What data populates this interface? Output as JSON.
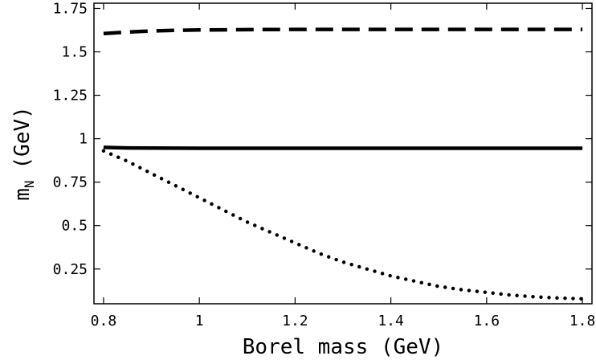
{
  "chart_data": {
    "type": "line",
    "xlabel": "Borel mass (GeV)",
    "ylabel": "m",
    "ylabel_sub": "N",
    "ylabel_unit": "(GeV)",
    "xlim": [
      0.78,
      1.82
    ],
    "ylim": [
      0.05,
      1.78
    ],
    "x_ticks": [
      0.8,
      1.0,
      1.2,
      1.4,
      1.6,
      1.8
    ],
    "x_tick_labels": [
      "0.8",
      "1",
      "1.2",
      "1.4",
      "1.6",
      "1.8"
    ],
    "y_ticks": [
      0.25,
      0.5,
      0.75,
      1.0,
      1.25,
      1.5,
      1.75
    ],
    "y_tick_labels": [
      "0.25",
      "0.5",
      "0.75",
      "1",
      "1.25",
      "1.5",
      "1.75"
    ],
    "grid": false,
    "legend": "none",
    "series": [
      {
        "style": "dashed",
        "x": [
          0.8,
          0.85,
          0.9,
          0.95,
          1.0,
          1.1,
          1.2,
          1.3,
          1.4,
          1.5,
          1.6,
          1.7,
          1.8
        ],
        "y": [
          1.605,
          1.614,
          1.62,
          1.624,
          1.626,
          1.628,
          1.629,
          1.629,
          1.629,
          1.629,
          1.629,
          1.629,
          1.629
        ]
      },
      {
        "style": "solid",
        "x": [
          0.8,
          0.85,
          0.9,
          1.0,
          1.2,
          1.4,
          1.6,
          1.8
        ],
        "y": [
          0.95,
          0.947,
          0.946,
          0.945,
          0.945,
          0.945,
          0.945,
          0.945
        ]
      },
      {
        "style": "dotted",
        "x": [
          0.8,
          0.85,
          0.9,
          0.95,
          1.0,
          1.05,
          1.1,
          1.15,
          1.2,
          1.25,
          1.3,
          1.35,
          1.4,
          1.45,
          1.5,
          1.55,
          1.6,
          1.65,
          1.7,
          1.75,
          1.8
        ],
        "y": [
          0.93,
          0.87,
          0.8,
          0.73,
          0.66,
          0.59,
          0.52,
          0.46,
          0.4,
          0.34,
          0.29,
          0.25,
          0.21,
          0.18,
          0.15,
          0.13,
          0.115,
          0.1,
          0.09,
          0.083,
          0.078
        ]
      }
    ]
  }
}
